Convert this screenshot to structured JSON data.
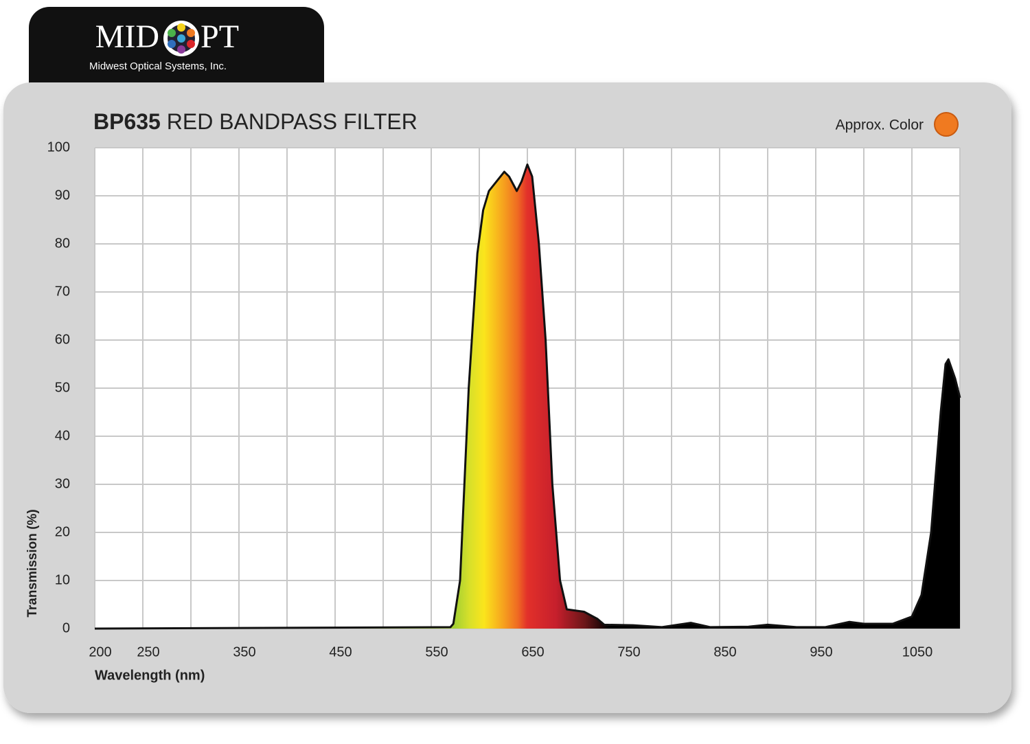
{
  "logo": {
    "left": "MID",
    "right": "PT",
    "subtitle": "Midwest Optical Systems, Inc."
  },
  "chart_data": {
    "type": "area",
    "title": [
      "BP635",
      "RED BANDPASS FILTER"
    ],
    "color_label": "Approx. Color",
    "approx_color": "#f07a20",
    "x_label": "Wavelength (nm)",
    "y_label": "Transmission (%)",
    "x": [
      200,
      570,
      573,
      580,
      589,
      598,
      604,
      610,
      626,
      631,
      639,
      644,
      650,
      655,
      662,
      669,
      676,
      684,
      691,
      709,
      723,
      730,
      760,
      790,
      820,
      840,
      880,
      900,
      930,
      960,
      985,
      1000,
      1030,
      1050,
      1060,
      1070,
      1080,
      1085,
      1088,
      1095,
      1100
    ],
    "values": [
      0,
      0.3,
      1,
      10,
      50,
      78,
      87,
      91,
      95,
      94,
      91,
      93,
      96.5,
      94,
      80,
      60,
      30,
      10,
      4,
      3.5,
      2,
      0.8,
      0.7,
      0.3,
      1.2,
      0.3,
      0.4,
      0.8,
      0.3,
      0.3,
      1.4,
      1.0,
      1.0,
      2.5,
      7,
      20,
      45,
      55,
      56,
      52,
      48
    ],
    "line_color": "#111111",
    "fill_gradient": [
      {
        "x": 575,
        "color": "#a6d132"
      },
      {
        "x": 590,
        "color": "#d8e02a"
      },
      {
        "x": 605,
        "color": "#fbe51c"
      },
      {
        "x": 625,
        "color": "#f6a21e"
      },
      {
        "x": 640,
        "color": "#ef6a22"
      },
      {
        "x": 650,
        "color": "#e2302a"
      },
      {
        "x": 680,
        "color": "#c61f2c"
      },
      {
        "x": 710,
        "color": "#6a1618"
      },
      {
        "x": 735,
        "color": "#000000"
      }
    ],
    "xlim": [
      200,
      1100
    ],
    "xticks": [
      200,
      250,
      350,
      450,
      550,
      650,
      750,
      850,
      950,
      1050
    ],
    "xgrid": [
      300,
      400,
      500,
      600,
      700,
      800,
      900,
      1000
    ],
    "ylim": [
      0,
      100
    ],
    "yticks": [
      0,
      10,
      20,
      30,
      40,
      50,
      60,
      70,
      80,
      90,
      100
    ],
    "grid": true
  }
}
